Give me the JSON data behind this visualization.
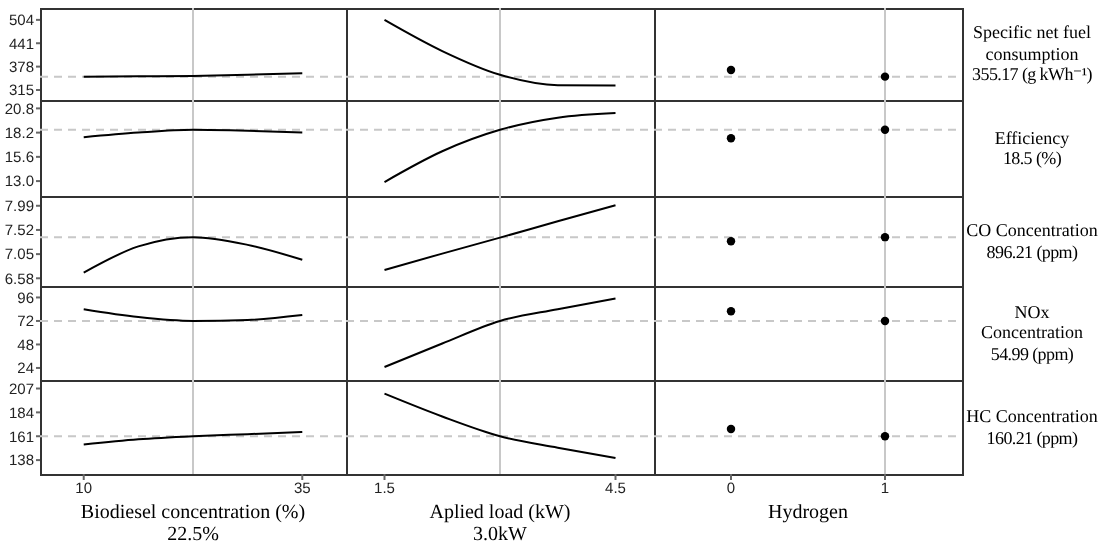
{
  "chart_data": [
    {
      "type": "line",
      "x": [
        10,
        16.25,
        22.5,
        28.75,
        35
      ],
      "values": [
        351,
        352,
        353,
        356,
        360
      ],
      "color": "#000000",
      "marker": "none",
      "xlim": [
        5,
        40
      ],
      "ylim": [
        288,
        536
      ],
      "yticks": [
        315,
        378,
        441,
        504
      ],
      "tick_labels": "y",
      "ref_lines": [
        {
          "axis": "x",
          "value": 22.5,
          "color": "#c8c8c8",
          "line_style": "solid"
        },
        {
          "axis": "y",
          "value": 351,
          "color": "#c8c8c8",
          "line_style": "dashed"
        }
      ]
    },
    {
      "type": "line",
      "x": [
        1.5,
        2.25,
        3,
        3.75,
        4.5
      ],
      "values": [
        504,
        420,
        356,
        328,
        327
      ],
      "color": "#000000",
      "marker": "none",
      "xlim": [
        1,
        5
      ],
      "ylim": [
        288,
        536
      ],
      "tick_labels": false,
      "ref_lines": [
        {
          "axis": "x",
          "value": 3,
          "color": "#c8c8c8",
          "line_style": "solid"
        },
        {
          "axis": "y",
          "value": 351,
          "color": "#c8c8c8",
          "line_style": "dashed"
        }
      ]
    },
    {
      "type": "scatter",
      "x": [
        0,
        1
      ],
      "values": [
        369,
        351
      ],
      "color": "#000000",
      "marker": "circle",
      "xlim": [
        -0.5,
        1.5
      ],
      "ylim": [
        288,
        536
      ],
      "tick_labels": false,
      "ref_lines": [
        {
          "axis": "x",
          "value": 1,
          "color": "#c8c8c8",
          "line_style": "solid"
        },
        {
          "axis": "y",
          "value": 351,
          "color": "#c8c8c8",
          "line_style": "dashed"
        }
      ],
      "annotations": [
        "Specific net fuel consumption",
        "355.17 (g kWh⁻¹)"
      ]
    },
    {
      "type": "line",
      "x": [
        10,
        16.25,
        22.5,
        28.75,
        35
      ],
      "values": [
        17.7,
        18.2,
        18.5,
        18.4,
        18.2
      ],
      "color": "#000000",
      "marker": "none",
      "xlim": [
        5,
        40
      ],
      "ylim": [
        11.4,
        21.7
      ],
      "yticks": [
        {
          "value": 13,
          "label": "13.0"
        },
        15.6,
        18.2,
        20.8
      ],
      "tick_labels": "y",
      "ref_lines": [
        {
          "axis": "x",
          "value": 22.5,
          "color": "#c8c8c8",
          "line_style": "solid"
        },
        {
          "axis": "y",
          "value": 18.5,
          "color": "#c8c8c8",
          "line_style": "dashed"
        }
      ]
    },
    {
      "type": "line",
      "x": [
        1.5,
        2.25,
        3,
        3.75,
        4.5
      ],
      "values": [
        12.9,
        16.2,
        18.5,
        19.8,
        20.3
      ],
      "color": "#000000",
      "marker": "none",
      "xlim": [
        1,
        5
      ],
      "ylim": [
        11.4,
        21.7
      ],
      "tick_labels": false,
      "ref_lines": [
        {
          "axis": "x",
          "value": 3,
          "color": "#c8c8c8",
          "line_style": "solid"
        },
        {
          "axis": "y",
          "value": 18.5,
          "color": "#c8c8c8",
          "line_style": "dashed"
        }
      ]
    },
    {
      "type": "scatter",
      "x": [
        0,
        1
      ],
      "values": [
        17.6,
        18.5
      ],
      "color": "#000000",
      "marker": "circle",
      "xlim": [
        -0.5,
        1.5
      ],
      "ylim": [
        11.4,
        21.7
      ],
      "tick_labels": false,
      "ref_lines": [
        {
          "axis": "x",
          "value": 1,
          "color": "#c8c8c8",
          "line_style": "solid"
        },
        {
          "axis": "y",
          "value": 18.5,
          "color": "#c8c8c8",
          "line_style": "dashed"
        }
      ],
      "annotations": [
        "Efficiency",
        "18.5 (%)"
      ]
    },
    {
      "type": "line",
      "x": [
        10,
        16.25,
        22.5,
        28.75,
        35
      ],
      "values": [
        6.69,
        7.2,
        7.38,
        7.23,
        6.94
      ],
      "color": "#000000",
      "marker": "none",
      "xlim": [
        5,
        40
      ],
      "ylim": [
        6.43,
        8.18
      ],
      "yticks": [
        6.58,
        7.05,
        7.52,
        7.99
      ],
      "tick_labels": "y",
      "ref_lines": [
        {
          "axis": "x",
          "value": 22.5,
          "color": "#c8c8c8",
          "line_style": "solid"
        },
        {
          "axis": "y",
          "value": 7.38,
          "color": "#c8c8c8",
          "line_style": "dashed"
        }
      ]
    },
    {
      "type": "line",
      "x": [
        1.5,
        2.25,
        3,
        3.75,
        4.5
      ],
      "values": [
        6.74,
        7.06,
        7.37,
        7.69,
        8.0
      ],
      "color": "#000000",
      "marker": "none",
      "xlim": [
        1,
        5
      ],
      "ylim": [
        6.43,
        8.18
      ],
      "tick_labels": false,
      "ref_lines": [
        {
          "axis": "x",
          "value": 3,
          "color": "#c8c8c8",
          "line_style": "solid"
        },
        {
          "axis": "y",
          "value": 7.38,
          "color": "#c8c8c8",
          "line_style": "dashed"
        }
      ]
    },
    {
      "type": "scatter",
      "x": [
        0,
        1
      ],
      "values": [
        7.3,
        7.38
      ],
      "color": "#000000",
      "marker": "circle",
      "xlim": [
        -0.5,
        1.5
      ],
      "ylim": [
        6.43,
        8.18
      ],
      "tick_labels": false,
      "ref_lines": [
        {
          "axis": "x",
          "value": 1,
          "color": "#c8c8c8",
          "line_style": "solid"
        },
        {
          "axis": "y",
          "value": 7.38,
          "color": "#c8c8c8",
          "line_style": "dashed"
        }
      ],
      "annotations": [
        "CO Concentration",
        "896.21 (ppm)"
      ]
    },
    {
      "type": "line",
      "x": [
        10,
        16.25,
        22.5,
        28.75,
        35
      ],
      "values": [
        84,
        76,
        72,
        73,
        78
      ],
      "color": "#000000",
      "marker": "none",
      "xlim": [
        5,
        40
      ],
      "ylim": [
        11.7,
        107.7
      ],
      "yticks": [
        24,
        48,
        72,
        96
      ],
      "tick_labels": "y",
      "ref_lines": [
        {
          "axis": "x",
          "value": 22.5,
          "color": "#c8c8c8",
          "line_style": "solid"
        },
        {
          "axis": "y",
          "value": 72,
          "color": "#c8c8c8",
          "line_style": "dashed"
        }
      ]
    },
    {
      "type": "line",
      "x": [
        1.5,
        2.25,
        3,
        3.75,
        4.5
      ],
      "values": [
        25,
        49,
        72,
        84,
        95
      ],
      "color": "#000000",
      "marker": "none",
      "xlim": [
        1,
        5
      ],
      "ylim": [
        11.7,
        107.7
      ],
      "tick_labels": false,
      "ref_lines": [
        {
          "axis": "x",
          "value": 3,
          "color": "#c8c8c8",
          "line_style": "solid"
        },
        {
          "axis": "y",
          "value": 72,
          "color": "#c8c8c8",
          "line_style": "dashed"
        }
      ]
    },
    {
      "type": "scatter",
      "x": [
        0,
        1
      ],
      "values": [
        82,
        72
      ],
      "color": "#000000",
      "marker": "circle",
      "xlim": [
        -0.5,
        1.5
      ],
      "ylim": [
        11.7,
        107.7
      ],
      "tick_labels": false,
      "ref_lines": [
        {
          "axis": "x",
          "value": 1,
          "color": "#c8c8c8",
          "line_style": "solid"
        },
        {
          "axis": "y",
          "value": 72,
          "color": "#c8c8c8",
          "line_style": "dashed"
        }
      ],
      "annotations": [
        "NOx Concentration",
        "54.99 (ppm)"
      ]
    },
    {
      "type": "line",
      "x": [
        10,
        16.25,
        22.5,
        28.75,
        35
      ],
      "values": [
        153,
        158,
        161,
        163,
        165
      ],
      "color": "#000000",
      "marker": "none",
      "xlim": [
        5,
        40
      ],
      "xticks": [
        10,
        35
      ],
      "ylim": [
        124.6,
        215.2
      ],
      "yticks": [
        138,
        161,
        184,
        207
      ],
      "xlabel": "Biodiesel concentration (%)",
      "annotations": [
        "22.5%"
      ],
      "ref_lines": [
        {
          "axis": "x",
          "value": 22.5,
          "color": "#c8c8c8",
          "line_style": "solid"
        },
        {
          "axis": "y",
          "value": 161,
          "color": "#c8c8c8",
          "line_style": "dashed"
        }
      ]
    },
    {
      "type": "line",
      "x": [
        1.5,
        2.25,
        3,
        3.75,
        4.5
      ],
      "values": [
        202,
        180,
        161,
        150,
        140
      ],
      "color": "#000000",
      "marker": "none",
      "xlim": [
        1,
        5
      ],
      "xticks": [
        1.5,
        4.5
      ],
      "ylim": [
        124.6,
        215.2
      ],
      "tick_labels": "x",
      "xlabel": "Aplied load (kW)",
      "annotations": [
        "3.0kW"
      ],
      "ref_lines": [
        {
          "axis": "x",
          "value": 3,
          "color": "#c8c8c8",
          "line_style": "solid"
        },
        {
          "axis": "y",
          "value": 161,
          "color": "#c8c8c8",
          "line_style": "dashed"
        }
      ]
    },
    {
      "type": "scatter",
      "x": [
        0,
        1
      ],
      "values": [
        168,
        161
      ],
      "color": "#000000",
      "marker": "circle",
      "xlim": [
        -0.5,
        1.5
      ],
      "xticks": [
        0,
        1
      ],
      "ylim": [
        124.6,
        215.2
      ],
      "tick_labels": "x",
      "xlabel": "Hydrogen",
      "ref_lines": [
        {
          "axis": "x",
          "value": 1,
          "color": "#c8c8c8",
          "line_style": "solid"
        },
        {
          "axis": "y",
          "value": 161,
          "color": "#c8c8c8",
          "line_style": "dashed"
        }
      ],
      "annotations": [
        "HC Concentration",
        "160.21 (ppm)"
      ]
    }
  ]
}
